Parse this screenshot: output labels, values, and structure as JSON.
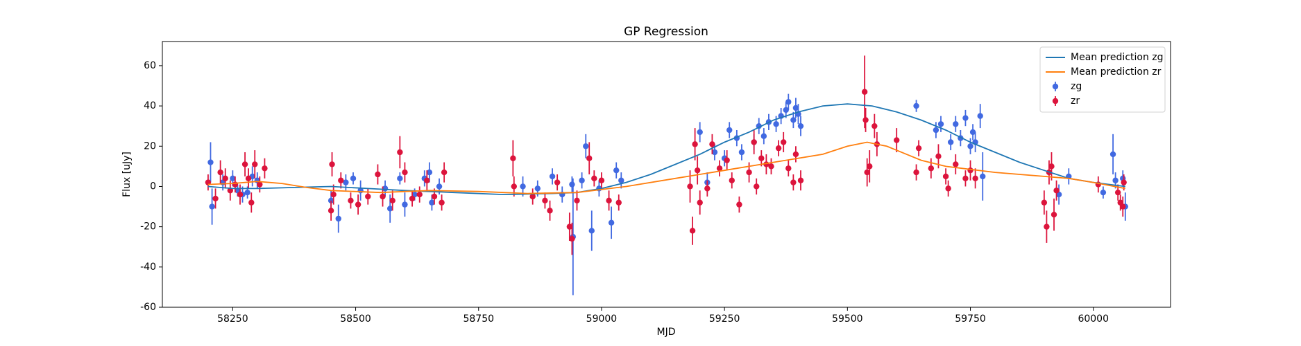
{
  "chart_data": {
    "type": "errorbar",
    "title": "GP Regression",
    "xlabel": "MJD",
    "ylabel": "Flux [uJy]",
    "xlim": [
      58107,
      60157
    ],
    "xticks": [
      58250,
      58500,
      58750,
      59000,
      59250,
      59500,
      59750,
      60000
    ],
    "ylim": [
      -60,
      72
    ],
    "yticks": [
      -60,
      -40,
      -20,
      0,
      20,
      40,
      60
    ],
    "legend": "upper right",
    "series": [
      {
        "name": "Mean prediction zg",
        "style": "line",
        "color": "#1f77b4",
        "x": [
          58200,
          58250,
          58300,
          58375,
          58450,
          58525,
          58600,
          58700,
          58800,
          58900,
          58950,
          59000,
          59050,
          59100,
          59150,
          59200,
          59250,
          59300,
          59350,
          59400,
          59450,
          59500,
          59550,
          59600,
          59650,
          59700,
          59750,
          59800,
          59850,
          59900,
          59950,
          60000,
          60065
        ],
        "values": [
          0,
          -1,
          -1,
          -0.5,
          0,
          -1,
          -2,
          -3,
          -4,
          -3.5,
          -3,
          -1,
          2,
          6,
          11,
          16,
          22,
          27,
          33,
          37,
          40,
          41,
          40,
          37,
          33,
          28,
          22,
          17,
          12,
          8,
          4,
          2,
          0
        ]
      },
      {
        "name": "Mean prediction zr",
        "style": "line",
        "color": "#ff7f0e",
        "x": [
          58200,
          58250,
          58300,
          58350,
          58400,
          58450,
          58550,
          58650,
          58750,
          58850,
          58950,
          59050,
          59150,
          59250,
          59350,
          59450,
          59500,
          59540,
          59580,
          59620,
          59650,
          59700,
          59800,
          59900,
          59950,
          60000,
          60065
        ],
        "values": [
          1,
          1.5,
          2.5,
          1.5,
          -0.5,
          -2,
          -3,
          -2,
          -2.5,
          -3.5,
          -3,
          0,
          4,
          8,
          12,
          16,
          20,
          22,
          20,
          16,
          13,
          10,
          7,
          5,
          4,
          2,
          -1
        ]
      },
      {
        "name": "zg",
        "style": "errorbar",
        "color": "#4169e1",
        "x": [
          58205,
          58208,
          58230,
          58250,
          58260,
          58270,
          58280,
          58290,
          58300,
          58450,
          58465,
          58480,
          58495,
          58510,
          58560,
          58570,
          58590,
          58600,
          58620,
          58640,
          58650,
          58655,
          58670,
          58840,
          58870,
          58900,
          58920,
          58940,
          58942,
          58960,
          58968,
          58980,
          58995,
          59020,
          59030,
          59040,
          59200,
          59215,
          59230,
          59250,
          59260,
          59275,
          59285,
          59310,
          59320,
          59330,
          59340,
          59355,
          59365,
          59375,
          59380,
          59390,
          59395,
          59400,
          59405,
          59640,
          59680,
          59690,
          59710,
          59720,
          59730,
          59740,
          59750,
          59755,
          59760,
          59770,
          59775,
          59930,
          59950,
          60020,
          60040,
          60045,
          60060,
          60065
        ],
        "values": [
          12,
          -10,
          2,
          4,
          -2,
          -4,
          -3,
          5,
          3,
          -7,
          -16,
          2,
          4,
          -2,
          -1,
          -11,
          4,
          -9,
          -4,
          4,
          7,
          -8,
          0,
          0,
          -1,
          5,
          -4,
          1,
          -25,
          3,
          20,
          -22,
          -1,
          -18,
          8,
          3,
          27,
          2,
          17,
          14,
          28,
          24,
          17,
          22,
          30,
          25,
          32,
          31,
          35,
          38,
          42,
          33,
          39,
          36,
          30,
          40,
          28,
          31,
          22,
          31,
          24,
          34,
          20,
          27,
          22,
          35,
          5,
          -4,
          5,
          -3,
          16,
          3,
          4,
          -10
        ],
        "errors": [
          10,
          9,
          4,
          4,
          3,
          4,
          3,
          5,
          4,
          5,
          7,
          4,
          3,
          5,
          4,
          7,
          3,
          6,
          3,
          4,
          5,
          4,
          4,
          5,
          4,
          4,
          4,
          4,
          29,
          4,
          6,
          10,
          4,
          8,
          4,
          4,
          5,
          5,
          4,
          4,
          4,
          4,
          4,
          4,
          4,
          4,
          4,
          4,
          4,
          4,
          4,
          4,
          5,
          5,
          5,
          3,
          4,
          4,
          4,
          4,
          4,
          4,
          4,
          4,
          5,
          6,
          12,
          5,
          4,
          3,
          10,
          4,
          4,
          7
        ]
      },
      {
        "name": "zr",
        "style": "errorbar",
        "color": "#dc143c",
        "x": [
          58200,
          58215,
          58225,
          58235,
          58245,
          58255,
          58265,
          58275,
          58282,
          58288,
          58295,
          58305,
          58315,
          58450,
          58452,
          58455,
          58470,
          58490,
          58505,
          58525,
          58545,
          58555,
          58575,
          58590,
          58600,
          58615,
          58630,
          58645,
          58660,
          58675,
          58680,
          58820,
          58822,
          58860,
          58885,
          58895,
          58910,
          58935,
          58940,
          58950,
          58975,
          58985,
          59000,
          59015,
          59035,
          59180,
          59185,
          59190,
          59195,
          59200,
          59215,
          59225,
          59240,
          59255,
          59265,
          59280,
          59300,
          59310,
          59315,
          59325,
          59335,
          59345,
          59360,
          59370,
          59380,
          59390,
          59395,
          59405,
          59535,
          59537,
          59540,
          59545,
          59555,
          59560,
          59600,
          59640,
          59645,
          59670,
          59685,
          59700,
          59705,
          59720,
          59740,
          59750,
          59760,
          59900,
          59905,
          59910,
          59915,
          59920,
          59925,
          60010,
          60050,
          60055,
          60060,
          60062
        ],
        "values": [
          2,
          -6,
          7,
          4,
          -2,
          1,
          -4,
          11,
          4,
          -8,
          11,
          1,
          9,
          -12,
          11,
          -4,
          3,
          -7,
          -9,
          -5,
          6,
          -5,
          -7,
          17,
          7,
          -6,
          -4,
          3,
          -5,
          -8,
          7,
          14,
          0,
          -5,
          -7,
          -12,
          2,
          -20,
          -26,
          -7,
          14,
          4,
          3,
          -7,
          -8,
          0,
          -22,
          21,
          8,
          -8,
          -1,
          21,
          9,
          13,
          3,
          -9,
          7,
          22,
          0,
          14,
          11,
          10,
          19,
          22,
          9,
          2,
          16,
          3,
          47,
          33,
          7,
          10,
          30,
          21,
          23,
          7,
          19,
          9,
          15,
          5,
          -1,
          11,
          4,
          8,
          4,
          -8,
          -20,
          7,
          10,
          -14,
          -2,
          1,
          -3,
          -8,
          -10,
          2
        ],
        "errors": [
          4,
          5,
          6,
          5,
          5,
          4,
          5,
          6,
          5,
          5,
          7,
          4,
          5,
          5,
          6,
          5,
          4,
          4,
          5,
          4,
          5,
          5,
          5,
          8,
          5,
          4,
          4,
          5,
          4,
          4,
          5,
          9,
          5,
          4,
          4,
          5,
          4,
          7,
          8,
          5,
          8,
          4,
          4,
          5,
          4,
          8,
          7,
          8,
          7,
          6,
          4,
          5,
          4,
          5,
          4,
          4,
          5,
          6,
          4,
          4,
          5,
          4,
          4,
          5,
          4,
          4,
          4,
          5,
          18,
          6,
          7,
          8,
          6,
          6,
          6,
          4,
          4,
          5,
          6,
          4,
          4,
          5,
          4,
          5,
          5,
          6,
          8,
          6,
          7,
          8,
          5,
          4,
          4,
          4,
          5,
          4
        ]
      }
    ]
  }
}
